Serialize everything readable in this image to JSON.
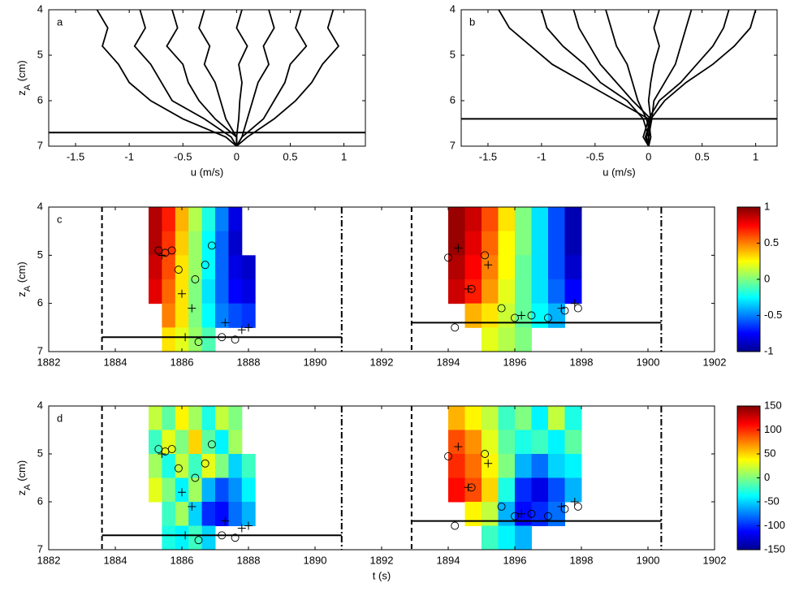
{
  "chart_data": [
    {
      "type": "line",
      "label": "a",
      "xlabel": "u (m/s)",
      "ylabel": [
        "z",
        "A",
        " (cm)"
      ],
      "xlim": [
        -1.75,
        1.2
      ],
      "xticks": [
        -1.5,
        -1,
        -0.5,
        0,
        0.5,
        1
      ],
      "ylim": [
        4,
        7
      ],
      "yticks": [
        4,
        5,
        6,
        7
      ],
      "y_reversed": true,
      "line_color": "#000000",
      "y": [
        4,
        4.4,
        4.8,
        5.2,
        5.6,
        6.0,
        6.4,
        6.8,
        7.0
      ],
      "series": [
        {
          "values": [
            -1.3,
            -1.2,
            -1.25,
            -1.1,
            -1.0,
            -0.8,
            -0.5,
            -0.1,
            0
          ]
        },
        {
          "values": [
            -0.9,
            -0.85,
            -0.95,
            -0.8,
            -0.7,
            -0.6,
            -0.3,
            -0.05,
            0
          ]
        },
        {
          "values": [
            -0.6,
            -0.55,
            -0.65,
            -0.5,
            -0.45,
            -0.35,
            -0.2,
            0,
            0
          ]
        },
        {
          "values": [
            -0.3,
            -0.35,
            -0.25,
            -0.3,
            -0.2,
            -0.15,
            -0.1,
            0,
            0
          ]
        },
        {
          "values": [
            0.05,
            0,
            0.1,
            0.02,
            0.05,
            0.03,
            0.02,
            0,
            0
          ]
        },
        {
          "values": [
            0.3,
            0.35,
            0.25,
            0.3,
            0.2,
            0.15,
            0.1,
            0.05,
            0
          ]
        },
        {
          "values": [
            0.6,
            0.55,
            0.65,
            0.5,
            0.45,
            0.35,
            0.25,
            0.05,
            0
          ]
        },
        {
          "values": [
            0.9,
            0.85,
            0.95,
            0.8,
            0.7,
            0.55,
            0.35,
            0.1,
            0
          ]
        }
      ],
      "hlines": [
        {
          "y": 6.7
        }
      ]
    },
    {
      "type": "line",
      "label": "b",
      "xlabel": "u (m/s)",
      "xlim": [
        -1.75,
        1.2
      ],
      "xticks": [
        -1.5,
        -1,
        -0.5,
        0,
        0.5,
        1
      ],
      "ylim": [
        4,
        7
      ],
      "yticks": [
        4,
        5,
        6,
        7
      ],
      "y_reversed": true,
      "line_color": "#000000",
      "y": [
        4,
        4.4,
        4.8,
        5.2,
        5.6,
        6.0,
        6.4,
        6.8,
        7.0
      ],
      "series": [
        {
          "values": [
            -1.4,
            -1.3,
            -1.1,
            -0.9,
            -0.6,
            -0.3,
            0,
            -0.05,
            0
          ]
        },
        {
          "values": [
            -1.0,
            -0.95,
            -0.8,
            -0.6,
            -0.45,
            -0.2,
            -0.05,
            0,
            0
          ]
        },
        {
          "values": [
            -0.7,
            -0.65,
            -0.55,
            -0.45,
            -0.3,
            -0.15,
            0.02,
            -0.03,
            0
          ]
        },
        {
          "values": [
            -0.4,
            -0.35,
            -0.3,
            -0.2,
            -0.15,
            -0.1,
            -0.02,
            0.02,
            0
          ]
        },
        {
          "values": [
            0.1,
            0.05,
            0.1,
            0.05,
            0.02,
            0,
            0.02,
            -0.02,
            0
          ]
        },
        {
          "values": [
            0.4,
            0.35,
            0.3,
            0.25,
            0.15,
            0.05,
            0.03,
            0,
            0
          ]
        },
        {
          "values": [
            0.75,
            0.7,
            0.6,
            0.45,
            0.3,
            0.1,
            0,
            0.02,
            0
          ]
        },
        {
          "values": [
            1.0,
            0.95,
            0.8,
            0.6,
            0.35,
            0.15,
            0.02,
            0,
            0
          ]
        }
      ],
      "hlines": [
        {
          "y": 6.4
        }
      ]
    },
    {
      "type": "heatmap",
      "label": "c",
      "ylabel": [
        "z",
        "A",
        " (cm)"
      ],
      "xlim": [
        1882,
        1902
      ],
      "xticks": [
        1882,
        1884,
        1886,
        1888,
        1890,
        1892,
        1894,
        1896,
        1898,
        1900,
        1902
      ],
      "ylim": [
        4,
        7
      ],
      "yticks": [
        4,
        5,
        6,
        7
      ],
      "y_reversed": true,
      "colorbar": {
        "lim": [
          -1,
          1
        ],
        "ticks": [
          1,
          0.5,
          0,
          -0.5,
          -1
        ]
      },
      "heatmaps": [
        {
          "x": [
            1885.2,
            1885.6,
            1886.0,
            1886.4,
            1886.8,
            1887.2,
            1887.6,
            1888.0
          ],
          "z": [
            4.25,
            4.75,
            5.25,
            5.75,
            6.25,
            6.75
          ],
          "values": [
            [
              0.9,
              0.7,
              0.4,
              0.1,
              -0.2,
              -0.5,
              -0.8,
              null
            ],
            [
              0.9,
              0.65,
              0.35,
              0.05,
              -0.25,
              -0.55,
              -0.85,
              null
            ],
            [
              0.85,
              0.6,
              0.3,
              0.05,
              -0.25,
              -0.55,
              -0.8,
              -0.85
            ],
            [
              0.8,
              0.55,
              0.3,
              0,
              -0.3,
              -0.55,
              -0.75,
              -0.8
            ],
            [
              null,
              0.5,
              0.3,
              0,
              -0.25,
              -0.5,
              -0.6,
              -0.65
            ],
            [
              null,
              0.3,
              0.2,
              0.05,
              -0.1,
              null,
              null,
              null
            ]
          ]
        },
        {
          "x": [
            1894.25,
            1894.75,
            1895.25,
            1895.75,
            1896.25,
            1896.75,
            1897.25,
            1897.75
          ],
          "z": [
            4.25,
            4.75,
            5.25,
            5.75,
            6.25,
            6.75
          ],
          "values": [
            [
              0.95,
              0.85,
              0.6,
              0.3,
              0,
              -0.3,
              -0.6,
              -0.9
            ],
            [
              0.95,
              0.8,
              0.55,
              0.25,
              0,
              -0.3,
              -0.6,
              -0.9
            ],
            [
              0.9,
              0.75,
              0.5,
              0.25,
              -0.05,
              -0.3,
              -0.6,
              -0.85
            ],
            [
              0.85,
              0.7,
              0.45,
              0.2,
              -0.05,
              -0.3,
              -0.55,
              -0.75
            ],
            [
              null,
              0.4,
              0.3,
              0.15,
              -0.05,
              -0.25,
              -0.4,
              null
            ],
            [
              null,
              null,
              0.2,
              0.1,
              0,
              null,
              null,
              null
            ]
          ]
        }
      ],
      "vlines": [
        {
          "x": 1883.6,
          "style": "dashed"
        },
        {
          "x": 1890.8,
          "style": "dashdot"
        },
        {
          "x": 1892.9,
          "style": "dashed"
        },
        {
          "x": 1900.4,
          "style": "dashdot"
        }
      ],
      "hlines": [
        {
          "y": 6.7,
          "x": [
            1883.6,
            1890.8
          ]
        },
        {
          "y": 6.4,
          "x": [
            1892.9,
            1900.4
          ]
        }
      ],
      "circles": {
        "x": [
          1885.3,
          1885.5,
          1885.7,
          1885.9,
          1886.4,
          1886.7,
          1886.9,
          1886.5,
          1887.2,
          1887.6,
          1894.0,
          1894.7,
          1895.1,
          1895.6,
          1896.0,
          1896.5,
          1897.0,
          1897.5,
          1897.9,
          1894.2
        ],
        "y": [
          4.9,
          4.95,
          4.9,
          5.3,
          5.5,
          5.2,
          4.8,
          6.8,
          6.7,
          6.75,
          5.05,
          5.7,
          5.0,
          6.1,
          6.3,
          6.25,
          6.3,
          6.15,
          6.1,
          6.5
        ]
      },
      "pluses": {
        "x": [
          1885.4,
          1886.0,
          1886.3,
          1886.1,
          1887.3,
          1887.8,
          1888.0,
          1894.3,
          1894.6,
          1895.2,
          1896.2,
          1897.4,
          1897.8
        ],
        "y": [
          5.0,
          5.8,
          6.1,
          6.7,
          6.4,
          6.55,
          6.5,
          4.85,
          5.7,
          5.2,
          6.25,
          6.1,
          6.0
        ]
      }
    },
    {
      "type": "heatmap",
      "label": "d",
      "xlabel": "t (s)",
      "ylabel": [
        "z",
        "A",
        " (cm)"
      ],
      "xlim": [
        1882,
        1902
      ],
      "xticks": [
        1882,
        1884,
        1886,
        1888,
        1890,
        1892,
        1894,
        1896,
        1898,
        1900,
        1902
      ],
      "ylim": [
        4,
        7
      ],
      "yticks": [
        4,
        5,
        6,
        7
      ],
      "y_reversed": true,
      "colorbar": {
        "lim": [
          -150,
          150
        ],
        "ticks": [
          150,
          100,
          50,
          0,
          -50,
          -100,
          -150
        ]
      },
      "heatmaps": [
        {
          "x": [
            1885.2,
            1885.6,
            1886.0,
            1886.4,
            1886.8,
            1887.2,
            1887.6,
            1888.0
          ],
          "z": [
            4.25,
            4.75,
            5.25,
            5.75,
            6.25,
            6.75
          ],
          "values": [
            [
              20,
              -10,
              40,
              10,
              -30,
              20,
              0,
              null
            ],
            [
              -20,
              30,
              0,
              50,
              -10,
              -40,
              10,
              null
            ],
            [
              10,
              -30,
              20,
              -20,
              30,
              0,
              -50,
              -20
            ],
            [
              30,
              0,
              -40,
              10,
              -60,
              -90,
              -70,
              -40
            ],
            [
              null,
              -20,
              10,
              -50,
              -100,
              -110,
              -80,
              -60
            ],
            [
              null,
              -30,
              -40,
              -20,
              -50,
              null,
              null,
              null
            ]
          ]
        },
        {
          "x": [
            1894.25,
            1894.75,
            1895.25,
            1895.75,
            1896.25,
            1896.75,
            1897.25,
            1897.75
          ],
          "z": [
            4.25,
            4.75,
            5.25,
            5.75,
            6.25,
            6.75
          ],
          "values": [
            [
              60,
              40,
              20,
              -20,
              0,
              -40,
              20,
              -30
            ],
            [
              90,
              70,
              30,
              -10,
              -30,
              -20,
              -40,
              -10
            ],
            [
              100,
              80,
              40,
              0,
              -60,
              -80,
              -50,
              -40
            ],
            [
              110,
              90,
              50,
              -30,
              -100,
              -120,
              -90,
              -60
            ],
            [
              null,
              40,
              20,
              -60,
              -110,
              -100,
              -80,
              null
            ],
            [
              null,
              null,
              -20,
              -40,
              -60,
              null,
              null,
              null
            ]
          ]
        }
      ],
      "vlines": [
        {
          "x": 1883.6,
          "style": "dashed"
        },
        {
          "x": 1890.8,
          "style": "dashdot"
        },
        {
          "x": 1892.9,
          "style": "dashed"
        },
        {
          "x": 1900.4,
          "style": "dashdot"
        }
      ],
      "hlines": [
        {
          "y": 6.7,
          "x": [
            1883.6,
            1890.8
          ]
        },
        {
          "y": 6.4,
          "x": [
            1892.9,
            1900.4
          ]
        }
      ],
      "circles": {
        "x": [
          1885.3,
          1885.5,
          1885.7,
          1885.9,
          1886.4,
          1886.7,
          1886.9,
          1886.5,
          1887.2,
          1887.6,
          1894.0,
          1894.7,
          1895.1,
          1895.6,
          1896.0,
          1896.5,
          1897.0,
          1897.5,
          1897.9,
          1894.2
        ],
        "y": [
          4.9,
          4.95,
          4.9,
          5.3,
          5.5,
          5.2,
          4.8,
          6.8,
          6.7,
          6.75,
          5.05,
          5.7,
          5.0,
          6.1,
          6.3,
          6.25,
          6.3,
          6.15,
          6.1,
          6.5
        ]
      },
      "pluses": {
        "x": [
          1885.4,
          1886.0,
          1886.3,
          1886.1,
          1887.3,
          1887.8,
          1888.0,
          1894.3,
          1894.6,
          1895.2,
          1896.2,
          1897.4,
          1897.8
        ],
        "y": [
          5.0,
          5.8,
          6.1,
          6.7,
          6.4,
          6.55,
          6.5,
          4.85,
          5.7,
          5.2,
          6.25,
          6.1,
          6.0
        ]
      }
    }
  ]
}
